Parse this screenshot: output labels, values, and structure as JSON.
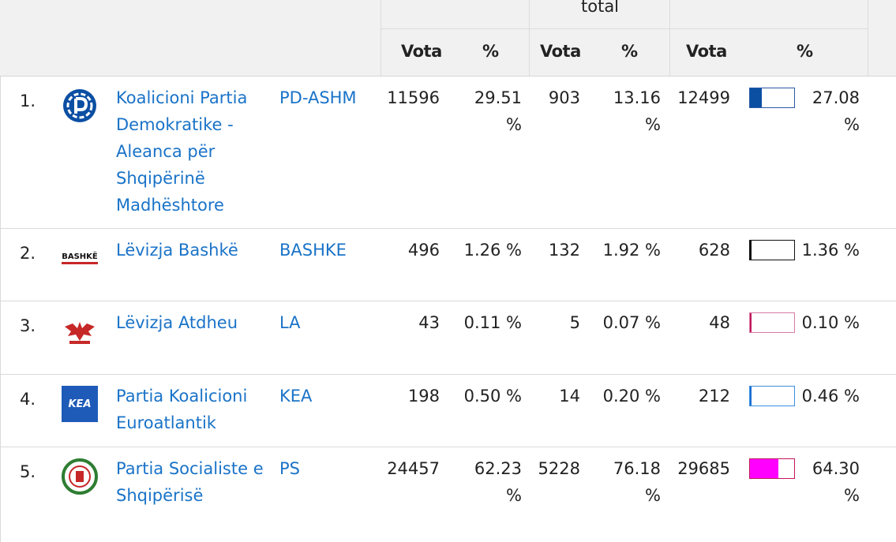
{
  "header": {
    "group_label": "total",
    "cols": {
      "vota1": "Vota",
      "pct1": "%",
      "vota2": "Vota",
      "pct2": "%",
      "vota3": "Vota",
      "pct3": "%"
    }
  },
  "rows": [
    {
      "idx": "1.",
      "logo": "pd-logo-icon",
      "name": "Koalicioni Partia Demokratike - Aleanca për Shqipërinë Madhështore",
      "abbr": "PD-ASHM",
      "v1": "11596",
      "p1": "29.51 %",
      "v2": "903",
      "p2": "13.16 %",
      "v3": "12499",
      "p3": "27.08 %",
      "bar_fraction": 0.2708,
      "bar_color": "#0b4fa3",
      "bar_border": "#2a5aa8"
    },
    {
      "idx": "2.",
      "logo": "bashke-logo-icon",
      "logo_text": "BASHKË",
      "name": "Lëvizja Bashkë",
      "abbr": "BASHKE",
      "v1": "496",
      "p1": "1.26 %",
      "v2": "132",
      "p2": "1.92 %",
      "v3": "628",
      "p3": "1.36 %",
      "bar_fraction": 0.0136,
      "bar_color": "#111111",
      "bar_border": "#111111"
    },
    {
      "idx": "3.",
      "logo": "atdheu-eagle-logo-icon",
      "name": "Lëvizja Atdheu",
      "abbr": "LA",
      "v1": "43",
      "p1": "0.11 %",
      "v2": "5",
      "p2": "0.07 %",
      "v3": "48",
      "p3": "0.10 %",
      "bar_fraction": 0.001,
      "bar_color": "#c2185b",
      "bar_border": "#d77aa6"
    },
    {
      "idx": "4.",
      "logo": "kea-logo-icon",
      "logo_text": "KEA",
      "name": "Partia Koalicioni Euroatlantik",
      "abbr": "KEA",
      "v1": "198",
      "p1": "0.50 %",
      "v2": "14",
      "p2": "0.20 %",
      "v3": "212",
      "p3": "0.46 %",
      "bar_fraction": 0.0046,
      "bar_color": "#1c6fd1",
      "bar_border": "#3b8fe0"
    },
    {
      "idx": "5.",
      "logo": "ps-logo-icon",
      "name": "Partia Socialiste e Shqipërisë",
      "abbr": "PS",
      "v1": "24457",
      "p1": "62.23 %",
      "v2": "5228",
      "p2": "76.18 %",
      "v3": "29685",
      "p3": "64.30 %",
      "bar_fraction": 0.643,
      "bar_color": "#ff00ff",
      "bar_border": "#c2185b"
    }
  ]
}
